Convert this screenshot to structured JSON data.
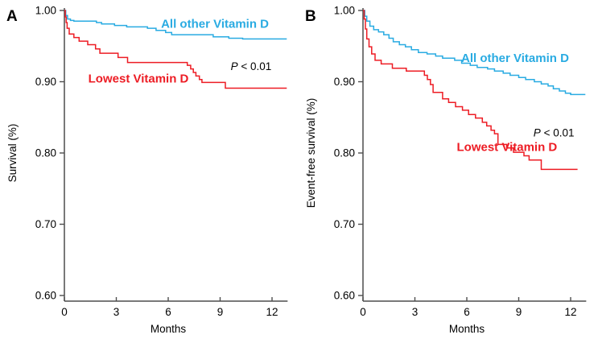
{
  "figure": {
    "background": "#ffffff",
    "axis_color": "#4d4d4d",
    "text_color": "#000000",
    "accent_colors": {
      "cyan": "#29abe2",
      "red": "#ed1c24"
    }
  },
  "chart_data": [
    {
      "type": "line",
      "panel_label": "A",
      "xlabel": "Months",
      "ylabel": "Survival (%)",
      "xlim": [
        0,
        12.9
      ],
      "ylim": [
        0.6,
        1.0
      ],
      "x_ticks": [
        0,
        3,
        6,
        9,
        12
      ],
      "y_ticks": [
        1.0,
        0.9,
        0.8,
        0.7,
        0.6
      ],
      "y_tick_labels": [
        "1.00",
        "0.90",
        "0.80",
        "0.70",
        "0.60"
      ],
      "grid": false,
      "legend_position": "inline-annotations",
      "series": [
        {
          "name": "All other Vitamin D",
          "color": "#29abe2",
          "step": true,
          "points": [
            [
              0,
              1.0
            ],
            [
              0.08,
              0.993
            ],
            [
              0.18,
              0.988
            ],
            [
              0.35,
              0.986
            ],
            [
              0.55,
              0.985
            ],
            [
              1.85,
              0.983
            ],
            [
              2.15,
              0.981
            ],
            [
              2.9,
              0.979
            ],
            [
              3.6,
              0.977
            ],
            [
              4.8,
              0.975
            ],
            [
              5.3,
              0.972
            ],
            [
              5.85,
              0.969
            ],
            [
              6.2,
              0.966
            ],
            [
              8.6,
              0.963
            ],
            [
              9.5,
              0.961
            ],
            [
              10.3,
              0.96
            ],
            [
              12.85,
              0.96
            ]
          ]
        },
        {
          "name": "Lowest Vitamin D",
          "color": "#ed1c24",
          "step": true,
          "points": [
            [
              0,
              1.0
            ],
            [
              0.05,
              0.991
            ],
            [
              0.1,
              0.983
            ],
            [
              0.16,
              0.975
            ],
            [
              0.28,
              0.967
            ],
            [
              0.55,
              0.962
            ],
            [
              0.85,
              0.957
            ],
            [
              1.35,
              0.952
            ],
            [
              1.8,
              0.946
            ],
            [
              2.05,
              0.94
            ],
            [
              3.1,
              0.934
            ],
            [
              3.65,
              0.927
            ],
            [
              7.1,
              0.923
            ],
            [
              7.3,
              0.918
            ],
            [
              7.45,
              0.913
            ],
            [
              7.6,
              0.908
            ],
            [
              7.8,
              0.903
            ],
            [
              7.95,
              0.899
            ],
            [
              9.3,
              0.891
            ],
            [
              12.85,
              0.891
            ]
          ]
        }
      ],
      "annotations": [
        {
          "text": "All other Vitamin D",
          "color": "#29abe2",
          "bold": true,
          "x": 8.7,
          "y": 0.9815
        },
        {
          "italic_prefix": "P",
          "text": " < 0.01",
          "color": "#000000",
          "bold": false,
          "x": 10.79,
          "y": 0.922
        },
        {
          "text": "Lowest Vitamin D",
          "color": "#ed1c24",
          "bold": true,
          "x": 4.28,
          "y": 0.9045
        }
      ]
    },
    {
      "type": "line",
      "panel_label": "B",
      "xlabel": "Months",
      "ylabel": "Event-free survival (%)",
      "xlim": [
        0,
        12.9
      ],
      "ylim": [
        0.6,
        1.0
      ],
      "x_ticks": [
        0,
        3,
        6,
        9,
        12
      ],
      "y_ticks": [
        1.0,
        0.9,
        0.8,
        0.7,
        0.6
      ],
      "y_tick_labels": [
        "1.00",
        "0.90",
        "0.80",
        "0.70",
        "0.60"
      ],
      "grid": false,
      "legend_position": "inline-annotations",
      "series": [
        {
          "name": "All other Vitamin D",
          "color": "#29abe2",
          "step": true,
          "points": [
            [
              0,
              1.0
            ],
            [
              0.1,
              0.992
            ],
            [
              0.22,
              0.985
            ],
            [
              0.4,
              0.978
            ],
            [
              0.62,
              0.973
            ],
            [
              0.9,
              0.97
            ],
            [
              1.2,
              0.966
            ],
            [
              1.5,
              0.961
            ],
            [
              1.75,
              0.956
            ],
            [
              2.1,
              0.952
            ],
            [
              2.45,
              0.949
            ],
            [
              2.8,
              0.945
            ],
            [
              3.2,
              0.941
            ],
            [
              3.7,
              0.939
            ],
            [
              4.2,
              0.936
            ],
            [
              4.6,
              0.933
            ],
            [
              5.3,
              0.93
            ],
            [
              5.7,
              0.926
            ],
            [
              6.2,
              0.923
            ],
            [
              6.6,
              0.92
            ],
            [
              7.2,
              0.918
            ],
            [
              7.6,
              0.915
            ],
            [
              8.1,
              0.912
            ],
            [
              8.5,
              0.909
            ],
            [
              9.0,
              0.906
            ],
            [
              9.4,
              0.903
            ],
            [
              9.9,
              0.9
            ],
            [
              10.3,
              0.897
            ],
            [
              10.7,
              0.894
            ],
            [
              11.0,
              0.89
            ],
            [
              11.35,
              0.887
            ],
            [
              11.7,
              0.884
            ],
            [
              12.0,
              0.882
            ],
            [
              12.85,
              0.882
            ]
          ]
        },
        {
          "name": "Lowest Vitamin D",
          "color": "#ed1c24",
          "step": true,
          "points": [
            [
              0,
              1.0
            ],
            [
              0.07,
              0.988
            ],
            [
              0.14,
              0.974
            ],
            [
              0.22,
              0.96
            ],
            [
              0.35,
              0.949
            ],
            [
              0.5,
              0.939
            ],
            [
              0.7,
              0.93
            ],
            [
              1.05,
              0.925
            ],
            [
              1.7,
              0.919
            ],
            [
              2.5,
              0.915
            ],
            [
              3.55,
              0.909
            ],
            [
              3.72,
              0.903
            ],
            [
              3.9,
              0.896
            ],
            [
              4.05,
              0.885
            ],
            [
              4.6,
              0.876
            ],
            [
              4.95,
              0.871
            ],
            [
              5.35,
              0.865
            ],
            [
              5.75,
              0.86
            ],
            [
              6.1,
              0.854
            ],
            [
              6.5,
              0.849
            ],
            [
              6.9,
              0.843
            ],
            [
              7.15,
              0.838
            ],
            [
              7.4,
              0.832
            ],
            [
              7.6,
              0.827
            ],
            [
              7.8,
              0.812
            ],
            [
              8.3,
              0.807
            ],
            [
              8.7,
              0.801
            ],
            [
              9.3,
              0.796
            ],
            [
              9.6,
              0.79
            ],
            [
              10.3,
              0.777
            ],
            [
              12.4,
              0.777
            ]
          ]
        }
      ],
      "annotations": [
        {
          "text": "All other Vitamin D",
          "color": "#29abe2",
          "bold": true,
          "x": 8.79,
          "y": 0.9335
        },
        {
          "italic_prefix": "P",
          "text": " < 0.01",
          "color": "#000000",
          "bold": false,
          "x": 11.03,
          "y": 0.829
        },
        {
          "text": "Lowest Vitamin D",
          "color": "#ed1c24",
          "bold": true,
          "x": 8.32,
          "y": 0.8085
        }
      ]
    }
  ]
}
